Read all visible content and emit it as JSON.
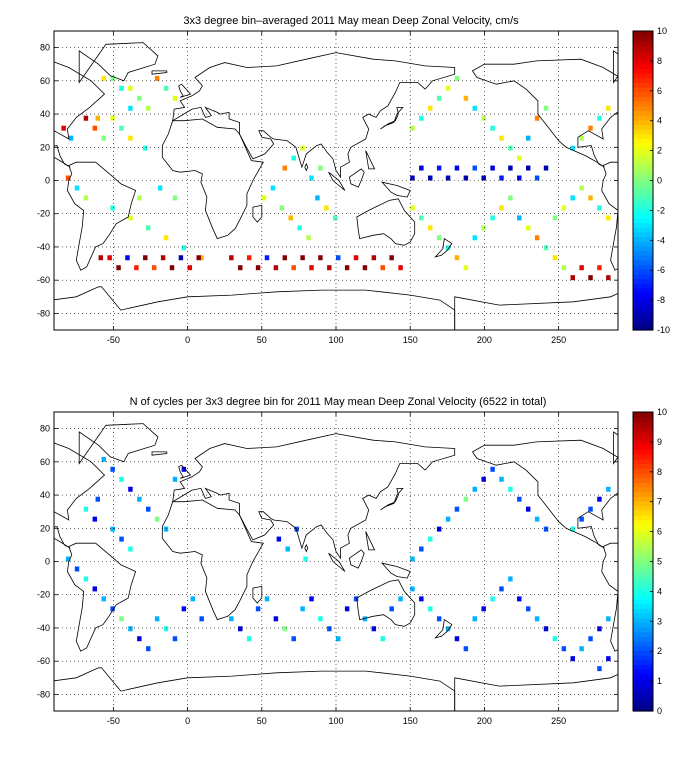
{
  "chart_data": [
    {
      "type": "heatmap",
      "title": "3x3 degree bin–averaged 2011 May mean Deep Zonal Velocity, cm/s",
      "xlim": [
        -90,
        290
      ],
      "ylim": [
        -90,
        90
      ],
      "xticks": [
        -50,
        0,
        50,
        100,
        150,
        200,
        250
      ],
      "yticks": [
        -80,
        -60,
        -40,
        -20,
        0,
        20,
        40,
        60,
        80
      ],
      "grid": "dotted",
      "colorbar": {
        "range": [
          -10,
          10
        ],
        "ticks": [
          -10,
          -8,
          -6,
          -4,
          -2,
          0,
          2,
          4,
          6,
          8,
          10
        ],
        "colormap": "jet"
      },
      "bin_size_deg": 3,
      "cells": [
        [
          -58,
          60,
          3
        ],
        [
          -52,
          60,
          0
        ],
        [
          -46,
          54,
          -2
        ],
        [
          -40,
          54,
          2
        ],
        [
          -34,
          48,
          0
        ],
        [
          -28,
          42,
          1
        ],
        [
          -40,
          42,
          -3
        ],
        [
          -62,
          36,
          4
        ],
        [
          -70,
          36,
          9
        ],
        [
          -64,
          30,
          6
        ],
        [
          -52,
          36,
          2
        ],
        [
          -46,
          30,
          -1
        ],
        [
          -58,
          24,
          0
        ],
        [
          -40,
          24,
          3
        ],
        [
          -30,
          18,
          -2
        ],
        [
          -22,
          60,
          5
        ],
        [
          -16,
          54,
          -1
        ],
        [
          -10,
          48,
          2
        ],
        [
          -80,
          24,
          -4
        ],
        [
          -85,
          30,
          8
        ],
        [
          -82,
          0,
          6
        ],
        [
          -76,
          -6,
          -3
        ],
        [
          -70,
          -12,
          1
        ],
        [
          -52,
          -18,
          -2
        ],
        [
          -40,
          -24,
          2
        ],
        [
          -28,
          -30,
          -1
        ],
        [
          -16,
          -36,
          3
        ],
        [
          -4,
          -42,
          -2
        ],
        [
          8,
          -48,
          4
        ],
        [
          -20,
          -6,
          -3
        ],
        [
          -10,
          -12,
          0
        ],
        [
          -34,
          -12,
          1
        ],
        [
          -60,
          -48,
          9
        ],
        [
          -54,
          -48,
          8
        ],
        [
          -48,
          -54,
          10
        ],
        [
          -42,
          -48,
          -8
        ],
        [
          -36,
          -54,
          7
        ],
        [
          -30,
          -48,
          10
        ],
        [
          -24,
          -54,
          6
        ],
        [
          -18,
          -48,
          9
        ],
        [
          -12,
          -54,
          10
        ],
        [
          -6,
          -48,
          -9
        ],
        [
          0,
          -54,
          8
        ],
        [
          6,
          -48,
          10
        ],
        [
          28,
          -48,
          9
        ],
        [
          34,
          -54,
          10
        ],
        [
          40,
          -48,
          7
        ],
        [
          46,
          -54,
          10
        ],
        [
          52,
          -48,
          -7
        ],
        [
          58,
          -54,
          9
        ],
        [
          64,
          -48,
          10
        ],
        [
          70,
          -54,
          6
        ],
        [
          76,
          -48,
          10
        ],
        [
          82,
          -54,
          8
        ],
        [
          88,
          -48,
          10
        ],
        [
          94,
          -54,
          9
        ],
        [
          100,
          -48,
          -6
        ],
        [
          106,
          -54,
          10
        ],
        [
          112,
          -48,
          8
        ],
        [
          118,
          -54,
          10
        ],
        [
          124,
          -48,
          9
        ],
        [
          130,
          -54,
          6
        ],
        [
          136,
          -48,
          10
        ],
        [
          142,
          -54,
          8
        ],
        [
          50,
          -12,
          2
        ],
        [
          56,
          -6,
          -3
        ],
        [
          62,
          -18,
          0
        ],
        [
          68,
          -24,
          4
        ],
        [
          74,
          -30,
          -2
        ],
        [
          80,
          -36,
          1
        ],
        [
          86,
          -12,
          -4
        ],
        [
          92,
          -18,
          3
        ],
        [
          98,
          -24,
          -1
        ],
        [
          64,
          6,
          5
        ],
        [
          70,
          12,
          -2
        ],
        [
          76,
          18,
          2
        ],
        [
          82,
          0,
          -3
        ],
        [
          88,
          6,
          0
        ],
        [
          150,
          0,
          -9
        ],
        [
          156,
          6,
          -8
        ],
        [
          162,
          0,
          -9
        ],
        [
          168,
          6,
          -7
        ],
        [
          174,
          0,
          -9
        ],
        [
          180,
          6,
          -8
        ],
        [
          186,
          0,
          -9
        ],
        [
          192,
          6,
          -6
        ],
        [
          198,
          0,
          -9
        ],
        [
          204,
          6,
          -8
        ],
        [
          210,
          0,
          -7
        ],
        [
          216,
          6,
          -9
        ],
        [
          222,
          0,
          -8
        ],
        [
          228,
          6,
          -9
        ],
        [
          234,
          0,
          -6
        ],
        [
          240,
          6,
          -9
        ],
        [
          150,
          30,
          1
        ],
        [
          156,
          36,
          -2
        ],
        [
          162,
          42,
          3
        ],
        [
          168,
          48,
          -1
        ],
        [
          174,
          54,
          2
        ],
        [
          180,
          60,
          0
        ],
        [
          186,
          48,
          4
        ],
        [
          192,
          42,
          -3
        ],
        [
          198,
          36,
          1
        ],
        [
          204,
          30,
          -2
        ],
        [
          210,
          24,
          3
        ],
        [
          216,
          18,
          -1
        ],
        [
          222,
          12,
          2
        ],
        [
          228,
          24,
          -4
        ],
        [
          234,
          36,
          5
        ],
        [
          240,
          42,
          0
        ],
        [
          150,
          -18,
          2
        ],
        [
          156,
          -24,
          -1
        ],
        [
          162,
          -30,
          3
        ],
        [
          168,
          -36,
          0
        ],
        [
          174,
          -42,
          -2
        ],
        [
          180,
          -48,
          4
        ],
        [
          186,
          -54,
          2
        ],
        [
          192,
          -36,
          -3
        ],
        [
          198,
          -30,
          1
        ],
        [
          204,
          -24,
          -2
        ],
        [
          210,
          -18,
          3
        ],
        [
          216,
          -12,
          0
        ],
        [
          222,
          -24,
          -4
        ],
        [
          228,
          -30,
          2
        ],
        [
          234,
          -36,
          5
        ],
        [
          240,
          -42,
          -1
        ],
        [
          246,
          -48,
          3
        ],
        [
          252,
          -54,
          1
        ],
        [
          258,
          -60,
          9
        ],
        [
          264,
          -54,
          8
        ],
        [
          270,
          -60,
          10
        ],
        [
          276,
          -54,
          7
        ],
        [
          282,
          -60,
          9
        ],
        [
          246,
          -24,
          0
        ],
        [
          252,
          -18,
          2
        ],
        [
          258,
          -12,
          -3
        ],
        [
          264,
          -6,
          1
        ],
        [
          270,
          -12,
          4
        ],
        [
          276,
          -18,
          -2
        ],
        [
          282,
          -24,
          3
        ],
        [
          270,
          30,
          5
        ],
        [
          276,
          36,
          -2
        ],
        [
          282,
          42,
          3
        ],
        [
          264,
          24,
          1
        ],
        [
          258,
          18,
          -3
        ]
      ]
    },
    {
      "type": "heatmap",
      "title": "N of cycles per 3x3 degree bin for 2011 May mean Deep Zonal Velocity (6522 in total)",
      "xlim": [
        -90,
        290
      ],
      "ylim": [
        -90,
        90
      ],
      "xticks": [
        -50,
        0,
        50,
        100,
        150,
        200,
        250
      ],
      "yticks": [
        -80,
        -60,
        -40,
        -20,
        0,
        20,
        40,
        60,
        80
      ],
      "grid": "dotted",
      "colorbar": {
        "range": [
          0,
          10
        ],
        "ticks": [
          0,
          1,
          2,
          3,
          4,
          5,
          6,
          7,
          8,
          9,
          10
        ],
        "colormap": "jet"
      },
      "bin_size_deg": 3,
      "cells": [
        [
          -58,
          60,
          3
        ],
        [
          -52,
          54,
          2
        ],
        [
          -46,
          48,
          4
        ],
        [
          -40,
          42,
          1
        ],
        [
          -34,
          36,
          3
        ],
        [
          -28,
          30,
          2
        ],
        [
          -22,
          24,
          5
        ],
        [
          -16,
          18,
          3
        ],
        [
          -62,
          36,
          2
        ],
        [
          -70,
          30,
          4
        ],
        [
          -64,
          24,
          1
        ],
        [
          -52,
          18,
          3
        ],
        [
          -46,
          12,
          2
        ],
        [
          -40,
          6,
          4
        ],
        [
          -10,
          48,
          3
        ],
        [
          -4,
          54,
          1
        ],
        [
          -82,
          0,
          3
        ],
        [
          -76,
          -6,
          2
        ],
        [
          -70,
          -12,
          4
        ],
        [
          -64,
          -18,
          1
        ],
        [
          -58,
          -24,
          3
        ],
        [
          -52,
          -30,
          2
        ],
        [
          -46,
          -36,
          5
        ],
        [
          -40,
          -42,
          3
        ],
        [
          -34,
          -48,
          1
        ],
        [
          -28,
          -54,
          2
        ],
        [
          -22,
          -36,
          3
        ],
        [
          -16,
          -42,
          4
        ],
        [
          -10,
          -48,
          2
        ],
        [
          -4,
          -30,
          1
        ],
        [
          2,
          -24,
          3
        ],
        [
          8,
          -36,
          2
        ],
        [
          28,
          -36,
          3
        ],
        [
          34,
          -42,
          1
        ],
        [
          40,
          -48,
          4
        ],
        [
          46,
          -30,
          2
        ],
        [
          52,
          -24,
          3
        ],
        [
          58,
          -36,
          1
        ],
        [
          64,
          -42,
          5
        ],
        [
          70,
          -48,
          2
        ],
        [
          76,
          -30,
          3
        ],
        [
          82,
          -24,
          1
        ],
        [
          88,
          -36,
          4
        ],
        [
          94,
          -42,
          2
        ],
        [
          100,
          -48,
          3
        ],
        [
          106,
          -30,
          1
        ],
        [
          112,
          -24,
          2
        ],
        [
          118,
          -36,
          3
        ],
        [
          124,
          -42,
          1
        ],
        [
          130,
          -48,
          4
        ],
        [
          136,
          -30,
          2
        ],
        [
          142,
          -24,
          3
        ],
        [
          60,
          12,
          1
        ],
        [
          66,
          6,
          3
        ],
        [
          72,
          18,
          2
        ],
        [
          78,
          0,
          4
        ],
        [
          150,
          0,
          3
        ],
        [
          156,
          6,
          2
        ],
        [
          162,
          12,
          4
        ],
        [
          168,
          18,
          1
        ],
        [
          174,
          24,
          3
        ],
        [
          180,
          30,
          2
        ],
        [
          186,
          36,
          5
        ],
        [
          192,
          42,
          3
        ],
        [
          198,
          48,
          1
        ],
        [
          204,
          54,
          2
        ],
        [
          210,
          48,
          3
        ],
        [
          216,
          42,
          4
        ],
        [
          222,
          36,
          2
        ],
        [
          228,
          30,
          1
        ],
        [
          234,
          24,
          3
        ],
        [
          240,
          18,
          2
        ],
        [
          150,
          -18,
          3
        ],
        [
          156,
          -24,
          1
        ],
        [
          162,
          -30,
          4
        ],
        [
          168,
          -36,
          2
        ],
        [
          174,
          -42,
          3
        ],
        [
          180,
          -48,
          1
        ],
        [
          186,
          -54,
          2
        ],
        [
          192,
          -36,
          3
        ],
        [
          198,
          -30,
          1
        ],
        [
          204,
          -24,
          4
        ],
        [
          210,
          -18,
          2
        ],
        [
          216,
          -12,
          3
        ],
        [
          222,
          -24,
          1
        ],
        [
          228,
          -30,
          2
        ],
        [
          234,
          -36,
          3
        ],
        [
          240,
          -42,
          1
        ],
        [
          246,
          -48,
          4
        ],
        [
          252,
          -54,
          2
        ],
        [
          258,
          -60,
          1
        ],
        [
          264,
          -54,
          3
        ],
        [
          270,
          -48,
          2
        ],
        [
          276,
          -42,
          1
        ],
        [
          282,
          -36,
          3
        ],
        [
          270,
          30,
          2
        ],
        [
          276,
          36,
          1
        ],
        [
          282,
          42,
          3
        ],
        [
          264,
          24,
          2
        ],
        [
          258,
          18,
          4
        ],
        [
          282,
          -60,
          1
        ],
        [
          276,
          -66,
          2
        ]
      ]
    }
  ]
}
